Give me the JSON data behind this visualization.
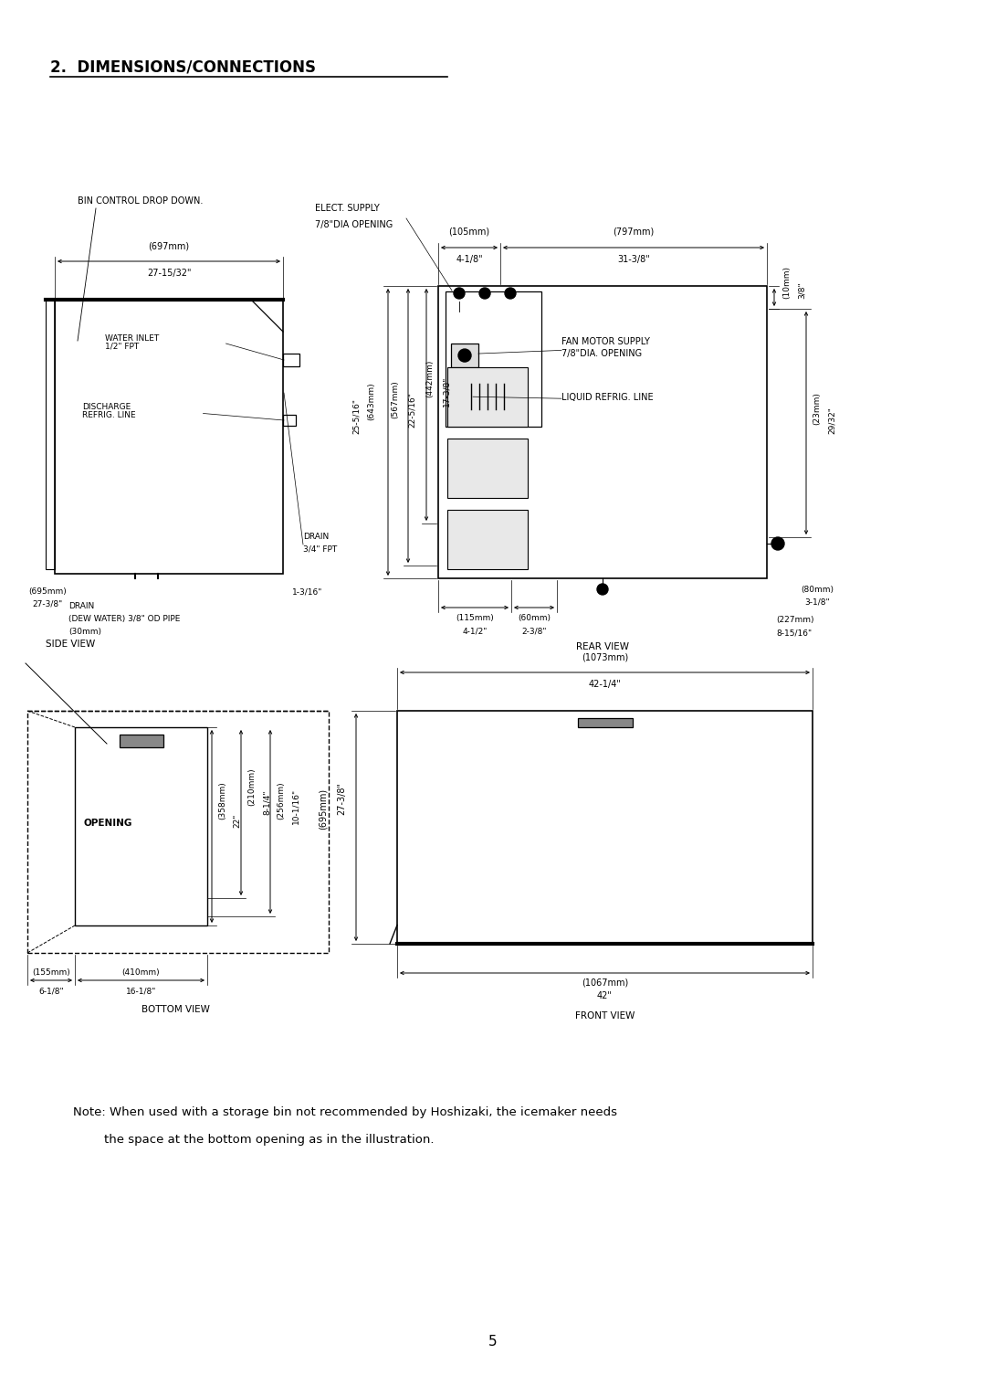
{
  "title": "2.  DIMENSIONS/CONNECTIONS",
  "background_color": "#ffffff",
  "line_color": "#000000",
  "note_line1": "Note: When used with a storage bin not recommended by Hoshizaki, the icemaker needs",
  "note_line2": "        the space at the bottom opening as in the illustration.",
  "page_number": "5"
}
